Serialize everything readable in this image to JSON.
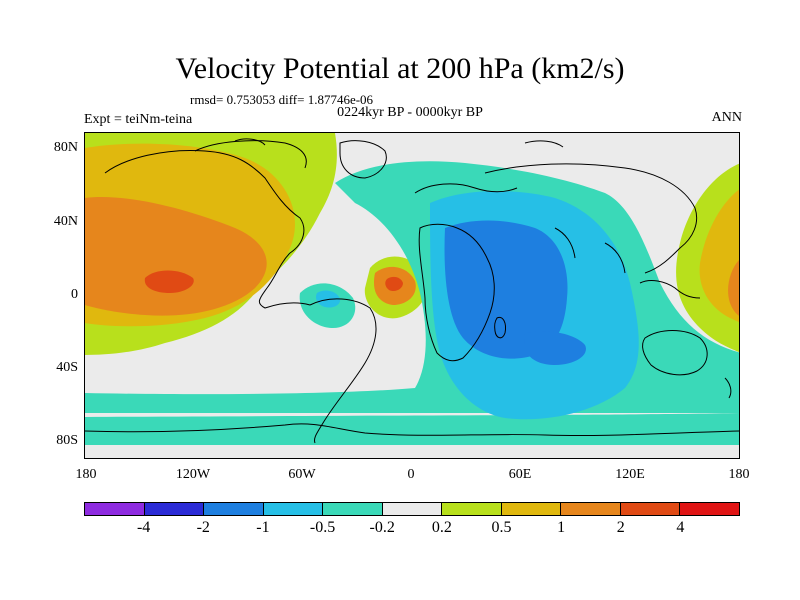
{
  "title": "Velocity Potential at 200 hPa (km2/s)",
  "stats": "rmsd= 0.753053 diff= 1.87746e-06",
  "subtitle": "0224kyr BP - 0000kyr BP",
  "left_label": "Expt = teiNm-teina",
  "right_label": "ANN",
  "lat_labels": [
    "80N",
    "40N",
    "0",
    "40S",
    "80S"
  ],
  "lon_labels": [
    "180",
    "120W",
    "60W",
    "0",
    "60E",
    "120E",
    "180"
  ],
  "colorbar": {
    "colors": [
      "#8e2be0",
      "#2b2bd6",
      "#1e7fe0",
      "#26bfe6",
      "#3ad9b8",
      "#ebebeb",
      "#b8e01c",
      "#e0b80e",
      "#e6861c",
      "#e04a14",
      "#e01414"
    ],
    "labels": [
      "-4",
      "-2",
      "-1",
      "-0.5",
      "-0.2",
      "0.2",
      "0.5",
      "1",
      "2",
      "4"
    ]
  }
}
